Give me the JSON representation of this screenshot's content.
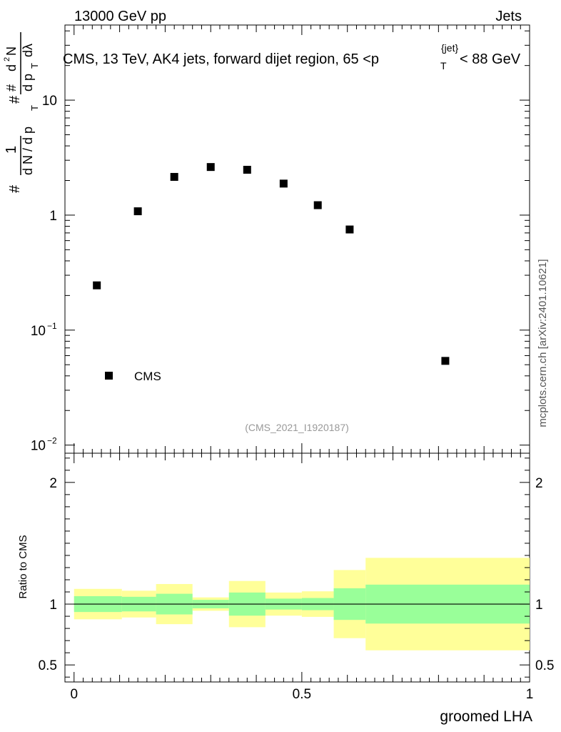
{
  "header": {
    "left": "13000 GeV pp",
    "right": "Jets"
  },
  "side_label": "mcplots.cern.ch [arXiv:2401.10621]",
  "chart_data": [
    {
      "type": "scatter",
      "title": "CMS, 13 TeV, AK4 jets, forward dijet region, 65 <p_T^{jet}< 88 GeV",
      "title_parts": {
        "prefix": "CMS, 13 TeV, AK4 jets, forward dijet region, 65 <p",
        "sub": "T",
        "sup": "{jet}",
        "suffix": "< 88 GeV"
      },
      "ylabel_parts": {
        "hash1": "#",
        "one": "1",
        "denominator": "d N / d p",
        "sub_T": "T",
        "hash2": "#",
        "hash3": "#",
        "numerator": "d",
        "sup2": "2",
        "N": "N",
        "dp": "d p",
        "dlambda": "dλ"
      },
      "yscale": "log",
      "ylim": [
        0.0085,
        45
      ],
      "xlim": [
        -0.02,
        1.0
      ],
      "yticks": [
        {
          "value": 10,
          "label": "10"
        },
        {
          "value": 1,
          "label": "1"
        },
        {
          "value": 0.1,
          "label": "10",
          "exp": "−1"
        },
        {
          "value": 0.01,
          "label": "10",
          "exp": "−2"
        }
      ],
      "series": [
        {
          "name": "CMS",
          "marker": "square",
          "color": "#000000",
          "x": [
            0.05,
            0.14,
            0.22,
            0.3,
            0.38,
            0.46,
            0.535,
            0.605,
            0.815
          ],
          "y": [
            0.245,
            1.08,
            2.15,
            2.62,
            2.48,
            1.88,
            1.22,
            0.75,
            0.054
          ]
        }
      ],
      "legend": {
        "position": "bottom-left",
        "label": "CMS"
      },
      "annotation": "(CMS_2021_I1920187)"
    },
    {
      "type": "area",
      "ylabel": "Ratio to CMS",
      "xlabel": "groomed LHA",
      "xlim": [
        -0.02,
        1.0
      ],
      "ylim": [
        0.36,
        2.24
      ],
      "yticks": [
        {
          "value": 0.5,
          "label": "0.5"
        },
        {
          "value": 1,
          "label": "1"
        },
        {
          "value": 2,
          "label": "2"
        }
      ],
      "xticks": [
        {
          "value": 0,
          "label": "0"
        },
        {
          "value": 0.5,
          "label": "0.5"
        },
        {
          "value": 1,
          "label": "1"
        }
      ],
      "reference_line": 1,
      "bins": [
        {
          "lo": 0.0,
          "hi": 0.105,
          "inner": [
            0.935,
            1.065
          ],
          "outer": [
            0.875,
            1.125
          ]
        },
        {
          "lo": 0.105,
          "hi": 0.18,
          "inner": [
            0.94,
            1.06
          ],
          "outer": [
            0.89,
            1.11
          ]
        },
        {
          "lo": 0.18,
          "hi": 0.26,
          "inner": [
            0.915,
            1.085
          ],
          "outer": [
            0.835,
            1.165
          ]
        },
        {
          "lo": 0.26,
          "hi": 0.34,
          "inner": [
            0.965,
            1.035
          ],
          "outer": [
            0.945,
            1.055
          ]
        },
        {
          "lo": 0.34,
          "hi": 0.42,
          "inner": [
            0.905,
            1.095
          ],
          "outer": [
            0.81,
            1.19
          ]
        },
        {
          "lo": 0.42,
          "hi": 0.5,
          "inner": [
            0.955,
            1.045
          ],
          "outer": [
            0.905,
            1.095
          ]
        },
        {
          "lo": 0.5,
          "hi": 0.57,
          "inner": [
            0.95,
            1.05
          ],
          "outer": [
            0.895,
            1.105
          ]
        },
        {
          "lo": 0.57,
          "hi": 0.64,
          "inner": [
            0.87,
            1.13
          ],
          "outer": [
            0.72,
            1.28
          ]
        },
        {
          "lo": 0.64,
          "hi": 1.0,
          "inner": [
            0.84,
            1.16
          ],
          "outer": [
            0.62,
            1.38
          ]
        }
      ],
      "colors": {
        "inner": "#99ff99",
        "outer": "#ffff99",
        "line": "#000000"
      }
    }
  ]
}
